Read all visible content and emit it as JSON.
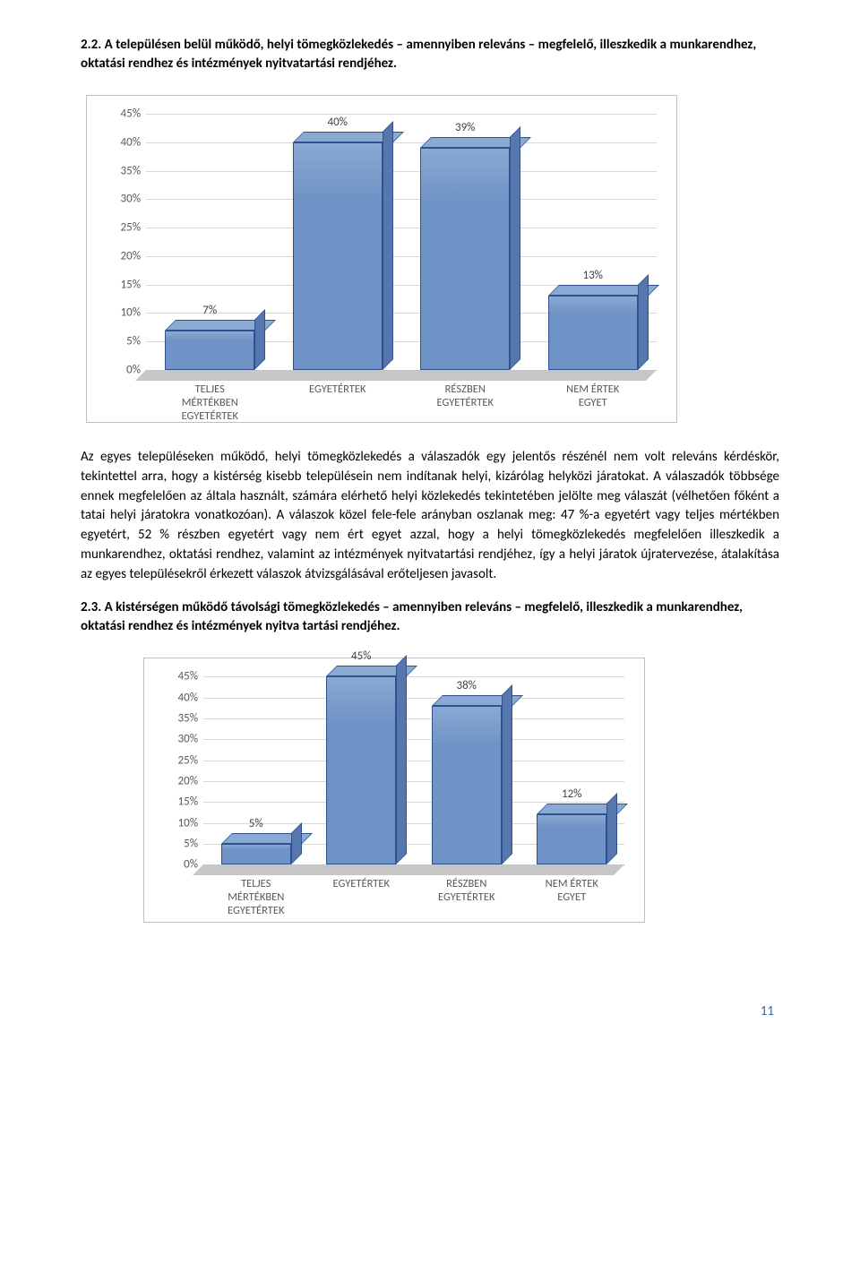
{
  "section22": {
    "heading": "2.2. A településen belül működő, helyi tömegközlekedés – amennyiben releváns – megfelelő, illeszkedik a munkarendhez, oktatási rendhez és intézmények nyitvatartási rendjéhez."
  },
  "chart1": {
    "type": "bar",
    "ymin": 0,
    "ymax": 45,
    "ytick_step": 5,
    "ytick_suffix": "%",
    "grid_color": "#d9d9d9",
    "floor_color": "#c6c6c6",
    "bar_front_color": "#6f93c6",
    "bar_top_color": "#8aa9d3",
    "bar_side_color": "#5577ad",
    "bar_border_color": "#2f528f",
    "label_color": "#595959",
    "categories": [
      "TELJES\nMÉRTÉKBEN\nEGYETÉRTEK",
      "EGYETÉRTEK",
      "RÉSZBEN\nEGYETÉRTEK",
      "NEM ÉRTEK\nEGYET"
    ],
    "values": [
      7,
      40,
      39,
      13
    ],
    "value_labels": [
      "7%",
      "40%",
      "39%",
      "13%"
    ]
  },
  "body1": "Az egyes településeken működő, helyi tömegközlekedés a válaszadók egy jelentős részénél nem volt releváns kérdéskör, tekintettel arra, hogy a kistérség kisebb településein nem indítanak helyi, kizárólag helyközi járatokat. A válaszadók többsége ennek megfelelően az általa használt, számára elérhető helyi közlekedés tekintetében jelölte meg válaszát (vélhetően főként a tatai helyi járatokra vonatkozóan). A válaszok közel fele-fele arányban oszlanak meg: 47 %-a egyetért vagy teljes mértékben egyetért, 52 % részben egyetért vagy nem ért egyet azzal, hogy a helyi tömegközlekedés megfelelően illeszkedik a munkarendhez, oktatási rendhez, valamint az intézmények nyitvatartási rendjéhez, így a helyi járatok újratervezése, átalakítása az egyes településekről érkezett válaszok átvizsgálásával erőteljesen javasolt.",
  "section23": {
    "heading": "2.3. A kistérségen működő távolsági tömegközlekedés – amennyiben releváns – megfelelő, illeszkedik a munkarendhez, oktatási rendhez és intézmények nyitva tartási rendjéhez."
  },
  "chart2": {
    "type": "bar",
    "ymin": 0,
    "ymax": 45,
    "ytick_step": 5,
    "ytick_suffix": "%",
    "grid_color": "#d9d9d9",
    "floor_color": "#c6c6c6",
    "bar_front_color": "#6f93c6",
    "bar_top_color": "#8aa9d3",
    "bar_side_color": "#5577ad",
    "bar_border_color": "#2f528f",
    "label_color": "#595959",
    "categories": [
      "TELJES\nMÉRTÉKBEN\nEGYETÉRTEK",
      "EGYETÉRTEK",
      "RÉSZBEN\nEGYETÉRTEK",
      "NEM ÉRTEK\nEGYET"
    ],
    "values": [
      5,
      45,
      38,
      12
    ],
    "value_labels": [
      "5%",
      "45%",
      "38%",
      "12%"
    ]
  },
  "page_number": "11"
}
